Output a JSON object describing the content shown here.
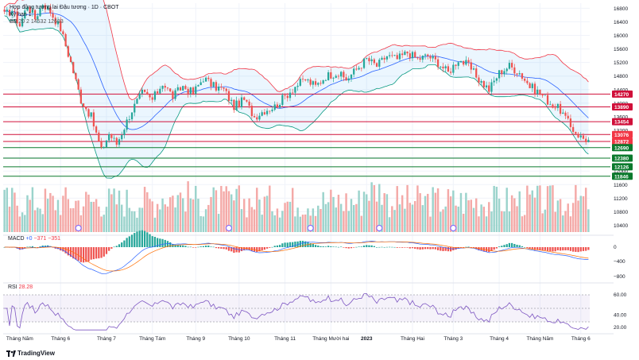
{
  "legend": {
    "title": "Hợp đồng tương lai Đậu tương · 1D · CBOT",
    "sub": "Kỳ hạn 1",
    "bb_label": "BB",
    "bb_values": "20 2  14532  12693"
  },
  "macd_label": {
    "name": "MACD",
    "v1": "+0",
    "v2": "−371",
    "v3": "−351"
  },
  "rsi_label": {
    "name": "RSI",
    "value": "28.28"
  },
  "brand": "TradingView",
  "colors": {
    "up": "#26a69a",
    "down": "#ef5350",
    "vol_up": "#9bd3cc",
    "vol_down": "#f4a9a7",
    "bb_upper": "#f23645",
    "bb_lower": "#089981",
    "bb_basis": "#2962ff",
    "bb_fill": "#2196f31a",
    "hline_red": "#d0103a",
    "hline_green": "#0b7a2d"
  },
  "chart_data": [
    {
      "type": "candlestick",
      "pane": "price",
      "x_ticks": [
        "Tháng Năm",
        "Tháng 6",
        "Tháng 7",
        "Tháng Tám",
        "Tháng 9",
        "Tháng 10",
        "Tháng 11",
        "Tháng Mười hai",
        "2023",
        "Tháng Hai",
        "Tháng 3",
        "Tháng 4",
        "Tháng Năm",
        "Tháng 6"
      ],
      "y_ticks": [
        16800,
        16400,
        16000,
        15600,
        15200,
        14800,
        14400,
        14000,
        13600,
        13200,
        12800,
        12400,
        12000,
        11600,
        11200,
        10800,
        10400
      ],
      "ylim": [
        10200,
        16950
      ],
      "horizontal_levels": [
        {
          "value": 14270,
          "label": "14270",
          "color": "red"
        },
        {
          "value": 13890,
          "label": "13890",
          "color": "red"
        },
        {
          "value": 13454,
          "label": "13454",
          "color": "red"
        },
        {
          "value": 13076,
          "label": "13076",
          "color": "red_filled"
        },
        {
          "value": 12872,
          "label": "12872",
          "color": "red_filled"
        },
        {
          "value": 12690,
          "label": "12690",
          "color": "green"
        },
        {
          "value": 12380,
          "label": "12380",
          "color": "green"
        },
        {
          "value": 12126,
          "label": "12126",
          "color": "green"
        },
        {
          "value": 11846,
          "label": "11846",
          "color": "green"
        }
      ],
      "ohlc_anchors": [
        [
          0,
          16600
        ],
        [
          3,
          16750
        ],
        [
          6,
          16300
        ],
        [
          9,
          16900
        ],
        [
          12,
          16500
        ],
        [
          15,
          16950
        ],
        [
          18,
          16700
        ],
        [
          22,
          16200
        ],
        [
          26,
          15200
        ],
        [
          30,
          14100
        ],
        [
          34,
          13600
        ],
        [
          38,
          12600
        ],
        [
          41,
          13100
        ],
        [
          44,
          12800
        ],
        [
          47,
          13300
        ],
        [
          50,
          13800
        ],
        [
          54,
          14300
        ],
        [
          58,
          14100
        ],
        [
          62,
          14600
        ],
        [
          66,
          14200
        ],
        [
          70,
          14500
        ],
        [
          74,
          14300
        ],
        [
          78,
          14750
        ],
        [
          82,
          14500
        ],
        [
          86,
          14400
        ],
        [
          90,
          13900
        ],
        [
          94,
          14100
        ],
        [
          98,
          13600
        ],
        [
          102,
          13800
        ],
        [
          106,
          13900
        ],
        [
          110,
          14200
        ],
        [
          114,
          14500
        ],
        [
          118,
          14700
        ],
        [
          122,
          14500
        ],
        [
          126,
          14800
        ],
        [
          130,
          14900
        ],
        [
          134,
          14700
        ],
        [
          138,
          15000
        ],
        [
          142,
          15300
        ],
        [
          146,
          15100
        ],
        [
          150,
          15400
        ],
        [
          154,
          15300
        ],
        [
          158,
          15500
        ],
        [
          162,
          15300
        ],
        [
          166,
          15400
        ],
        [
          170,
          15200
        ],
        [
          174,
          14900
        ],
        [
          178,
          15300
        ],
        [
          182,
          15100
        ],
        [
          186,
          14700
        ],
        [
          190,
          14400
        ],
        [
          194,
          14900
        ],
        [
          198,
          15100
        ],
        [
          202,
          14900
        ],
        [
          206,
          14500
        ],
        [
          210,
          14300
        ],
        [
          214,
          14000
        ],
        [
          218,
          13800
        ],
        [
          222,
          13300
        ],
        [
          226,
          13000
        ],
        [
          229,
          12900
        ]
      ]
    },
    {
      "type": "bar",
      "pane": "volume",
      "series": [
        {
          "name": "Volume",
          "colored_by_candle": true
        }
      ]
    },
    {
      "type": "line",
      "pane": "macd",
      "y_ticks": [
        0,
        -400,
        -800
      ],
      "series": [
        {
          "name": "MACD"
        },
        {
          "name": "Signal"
        },
        {
          "name": "Histogram",
          "type": "bar"
        }
      ]
    },
    {
      "type": "line",
      "pane": "rsi",
      "y_ticks": [
        60,
        40,
        20
      ],
      "bands": [
        30,
        70
      ],
      "mid": 50,
      "series": [
        {
          "name": "RSI"
        }
      ]
    }
  ]
}
